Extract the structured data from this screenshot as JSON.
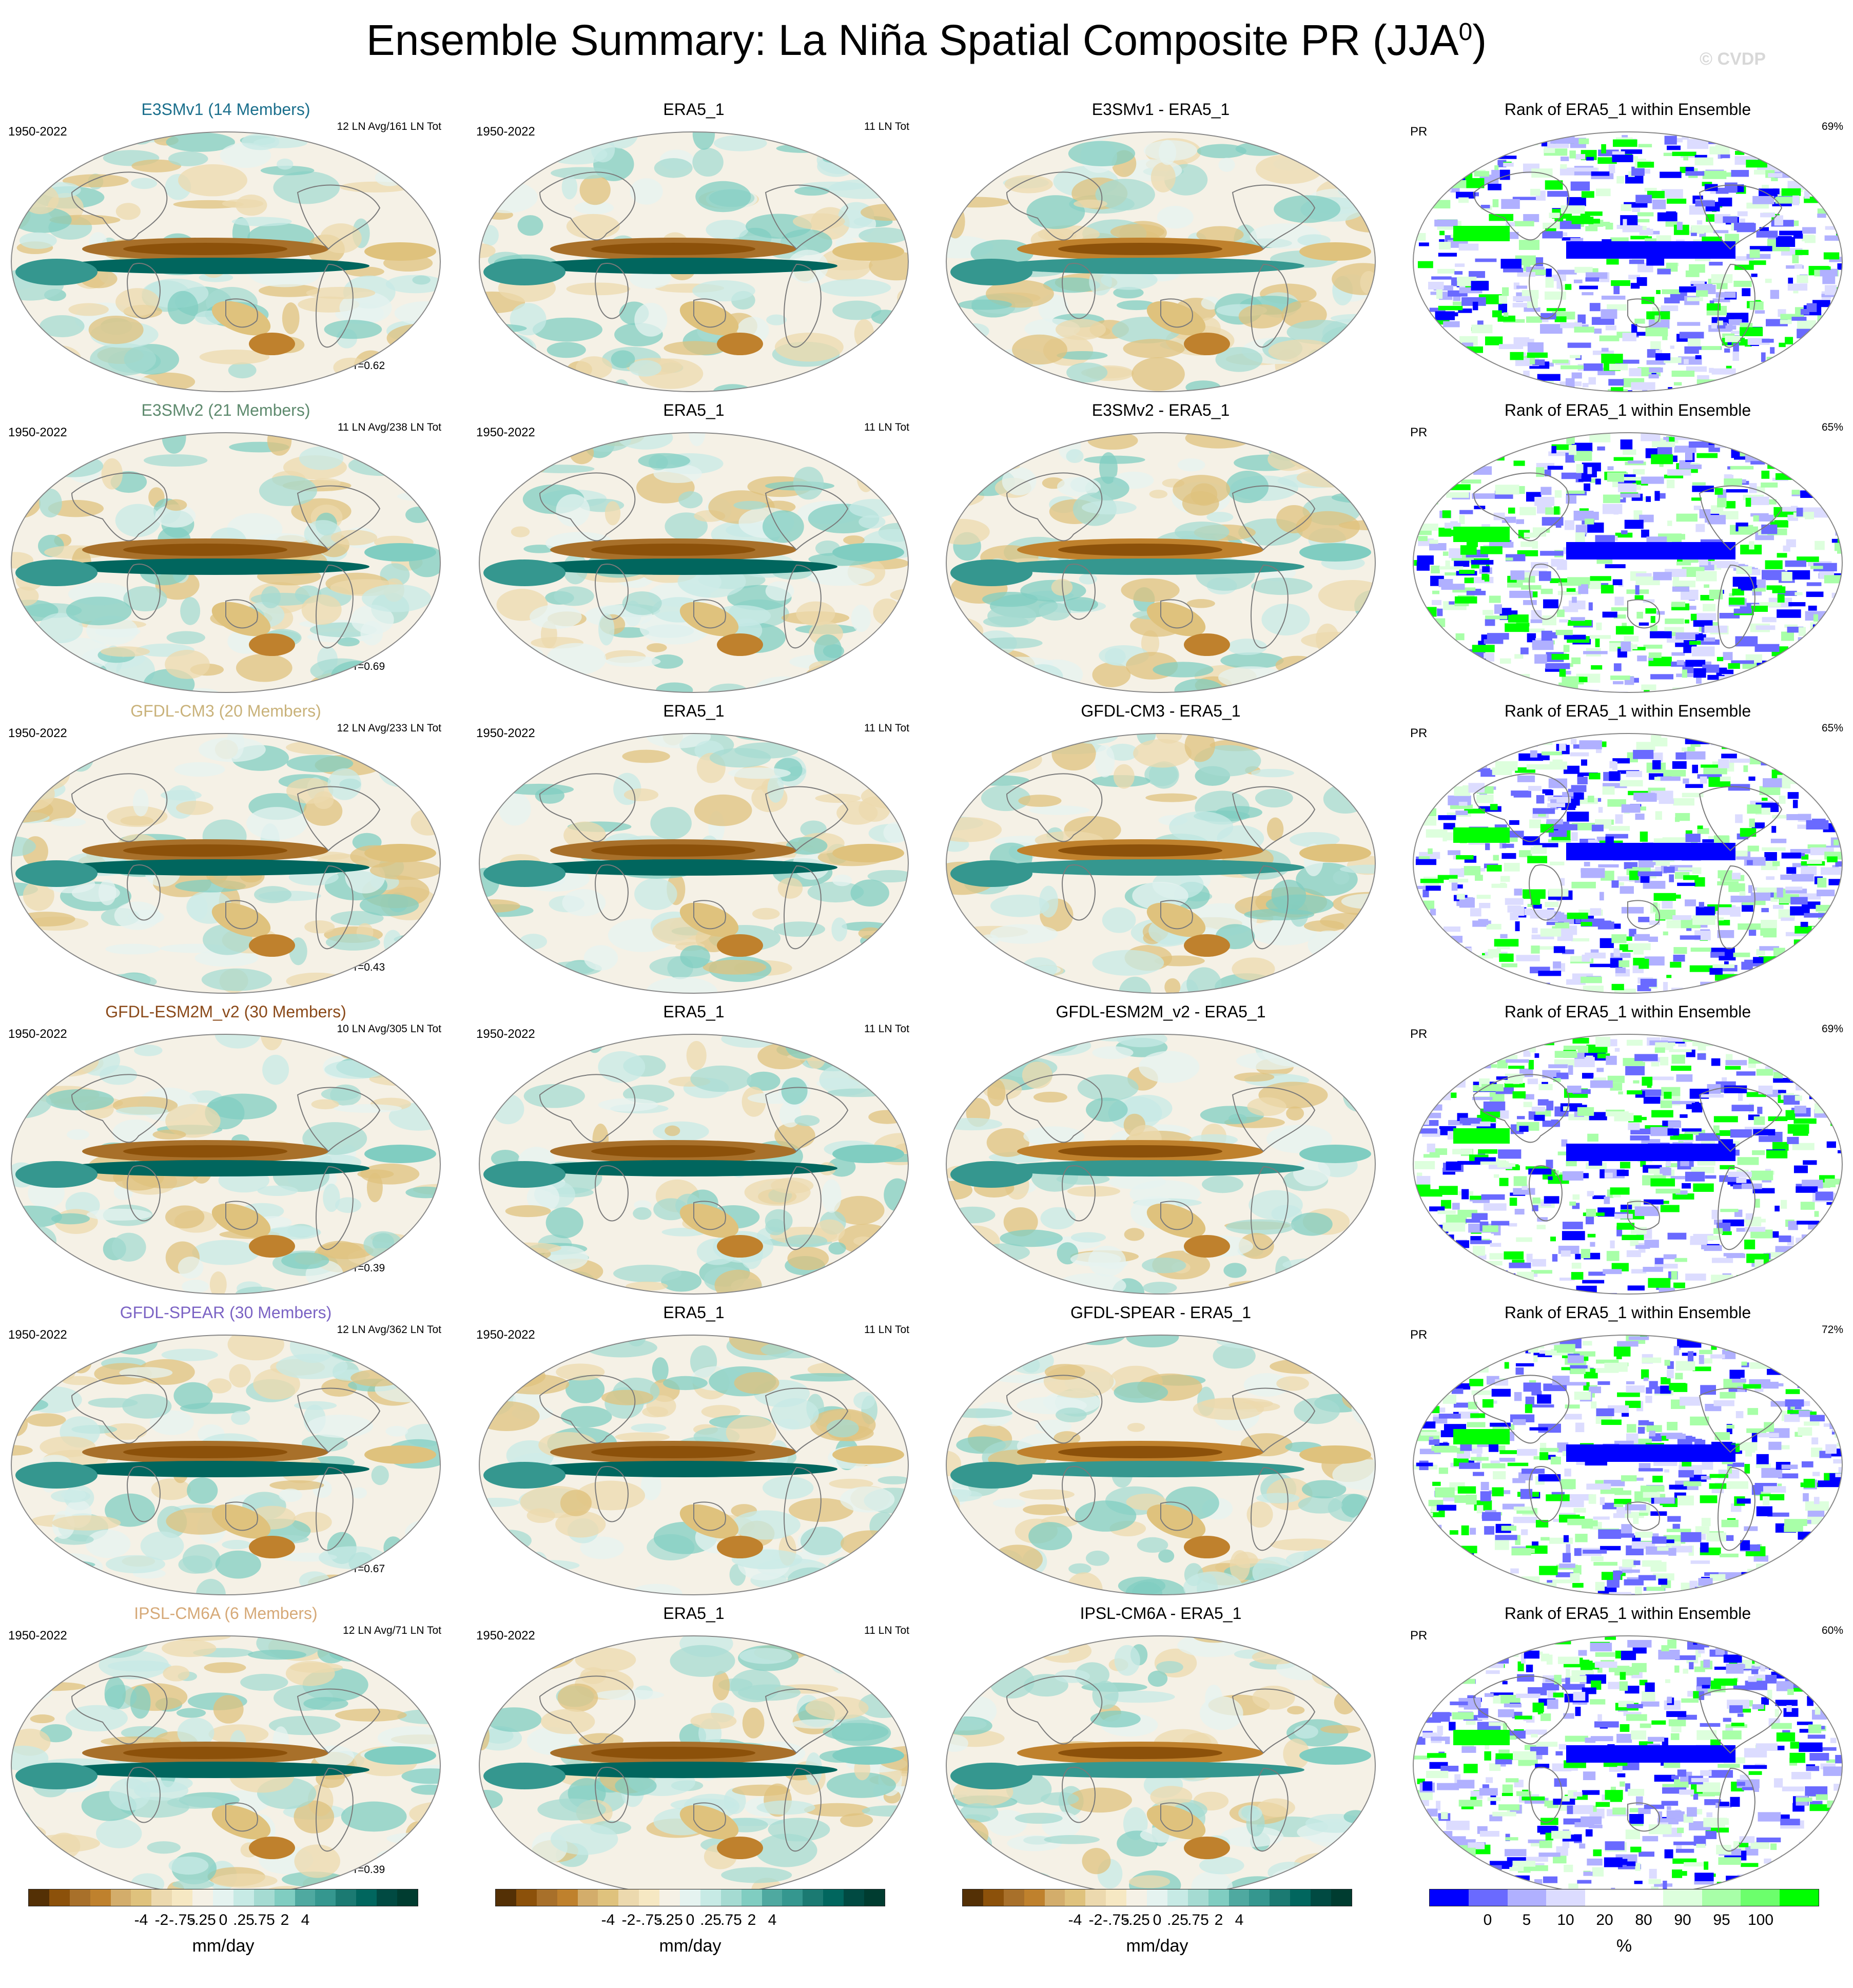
{
  "title": "Ensemble Summary: La Niña Spatial Composite PR (JJA",
  "title_sup": "0",
  "title_close": ")",
  "watermark": "© CVDP",
  "rows": [
    {
      "model": "E3SMv1 (14 Members)",
      "model_color": "#1b6f8c",
      "period": "1950-2022",
      "counts": "12 LN Avg/161 LN Tot",
      "corr": "r=0.62",
      "obs_title": "ERA5_1",
      "obs_period": "1950-2022",
      "obs_counts": "11 LN Tot",
      "diff_title": "E3SMv1 - ERA5_1",
      "rank_title": "Rank of ERA5_1 within Ensemble",
      "rank_var": "PR",
      "rank_pct": "69%"
    },
    {
      "model": "E3SMv2 (21 Members)",
      "model_color": "#5e8a6e",
      "period": "1950-2022",
      "counts": "11 LN Avg/238 LN Tot",
      "corr": "r=0.69",
      "obs_title": "ERA5_1",
      "obs_period": "1950-2022",
      "obs_counts": "11 LN Tot",
      "diff_title": "E3SMv2 - ERA5_1",
      "rank_title": "Rank of ERA5_1 within Ensemble",
      "rank_var": "PR",
      "rank_pct": "65%"
    },
    {
      "model": "GFDL-CM3 (20 Members)",
      "model_color": "#c9b27a",
      "period": "1950-2022",
      "counts": "12 LN Avg/233 LN Tot",
      "corr": "r=0.43",
      "obs_title": "ERA5_1",
      "obs_period": "1950-2022",
      "obs_counts": "11 LN Tot",
      "diff_title": "GFDL-CM3 - ERA5_1",
      "rank_title": "Rank of ERA5_1 within Ensemble",
      "rank_var": "PR",
      "rank_pct": "65%"
    },
    {
      "model": "GFDL-ESM2M_v2 (30 Members)",
      "model_color": "#8b4a1a",
      "period": "1950-2022",
      "counts": "10 LN Avg/305 LN Tot",
      "corr": "r=0.39",
      "obs_title": "ERA5_1",
      "obs_period": "1950-2022",
      "obs_counts": "11 LN Tot",
      "diff_title": "GFDL-ESM2M_v2 - ERA5_1",
      "rank_title": "Rank of ERA5_1 within Ensemble",
      "rank_var": "PR",
      "rank_pct": "69%"
    },
    {
      "model": "GFDL-SPEAR (30 Members)",
      "model_color": "#7b63c4",
      "period": "1950-2022",
      "counts": "12 LN Avg/362 LN Tot",
      "corr": "r=0.67",
      "obs_title": "ERA5_1",
      "obs_period": "1950-2022",
      "obs_counts": "11 LN Tot",
      "diff_title": "GFDL-SPEAR - ERA5_1",
      "rank_title": "Rank of ERA5_1 within Ensemble",
      "rank_var": "PR",
      "rank_pct": "72%"
    },
    {
      "model": "IPSL-CM6A (6 Members)",
      "model_color": "#d6a978",
      "period": "1950-2022",
      "counts": "12 LN Avg/71 LN Tot",
      "corr": "r=0.39",
      "obs_title": "ERA5_1",
      "obs_period": "1950-2022",
      "obs_counts": "11 LN Tot",
      "diff_title": "IPSL-CM6A - ERA5_1",
      "rank_title": "Rank of ERA5_1 within Ensemble",
      "rank_var": "PR",
      "rank_pct": "60%"
    }
  ],
  "colorbars": [
    {
      "unit": "mm/day",
      "ticks": [
        "-4",
        "-2",
        "-.75",
        "-.25",
        "0",
        ".25",
        ".75",
        "2",
        "4"
      ],
      "colors": [
        "#543005",
        "#8c510a",
        "#a8702a",
        "#bf812d",
        "#d3ad6b",
        "#dfc27d",
        "#ecd9ae",
        "#f6e8c3",
        "#f5f1e6",
        "#e5f3f0",
        "#c7eae5",
        "#a5dbd2",
        "#80cdc1",
        "#4fa9a0",
        "#35978f",
        "#1b7a72",
        "#01665e",
        "#014a42",
        "#003c30"
      ]
    },
    {
      "unit": "mm/day",
      "ticks": [
        "-4",
        "-2",
        "-.75",
        "-.25",
        "0",
        ".25",
        ".75",
        "2",
        "4"
      ],
      "colors": [
        "#543005",
        "#8c510a",
        "#a8702a",
        "#bf812d",
        "#d3ad6b",
        "#dfc27d",
        "#ecd9ae",
        "#f6e8c3",
        "#f5f1e6",
        "#e5f3f0",
        "#c7eae5",
        "#a5dbd2",
        "#80cdc1",
        "#4fa9a0",
        "#35978f",
        "#1b7a72",
        "#01665e",
        "#014a42",
        "#003c30"
      ]
    },
    {
      "unit": "mm/day",
      "ticks": [
        "-4",
        "-2",
        "-.75",
        "-.25",
        "0",
        ".25",
        ".75",
        "2",
        "4"
      ],
      "colors": [
        "#543005",
        "#8c510a",
        "#a8702a",
        "#bf812d",
        "#d3ad6b",
        "#dfc27d",
        "#ecd9ae",
        "#f6e8c3",
        "#f5f1e6",
        "#e5f3f0",
        "#c7eae5",
        "#a5dbd2",
        "#80cdc1",
        "#4fa9a0",
        "#35978f",
        "#1b7a72",
        "#01665e",
        "#014a42",
        "#003c30"
      ]
    },
    {
      "unit": "%",
      "ticks": [
        "0",
        "5",
        "10",
        "20",
        "80",
        "90",
        "95",
        "100"
      ],
      "colors": [
        "#0000ff",
        "#6a6aff",
        "#b0b0ff",
        "#dcdcff",
        "#ffffff",
        "#ffffff",
        "#ddffdd",
        "#a8ffa8",
        "#6cff6c",
        "#00ff00"
      ]
    }
  ],
  "chart_data": {
    "type": "heatmap",
    "description_variable": "PR",
    "season": "JJA0",
    "composite": "La Niña",
    "models": [
      "E3SMv1",
      "E3SMv2",
      "GFDL-CM3",
      "GFDL-ESM2M_v2",
      "GFDL-SPEAR",
      "IPSL-CM6A"
    ],
    "observations": "ERA5_1",
    "columns": [
      "ensemble mean composite",
      "observed composite",
      "difference",
      "rank of observations within ensemble"
    ],
    "pattern_correlations": [
      0.62,
      0.69,
      0.43,
      0.39,
      0.67,
      0.39
    ],
    "rank_percent_within_10_90": [
      69,
      65,
      65,
      69,
      72,
      60
    ],
    "contour_levels_mm_per_day": [
      -4,
      -2,
      -0.75,
      -0.25,
      0,
      0.25,
      0.75,
      2,
      4
    ],
    "rank_levels_percent": [
      0,
      5,
      10,
      20,
      80,
      90,
      95,
      100
    ]
  }
}
